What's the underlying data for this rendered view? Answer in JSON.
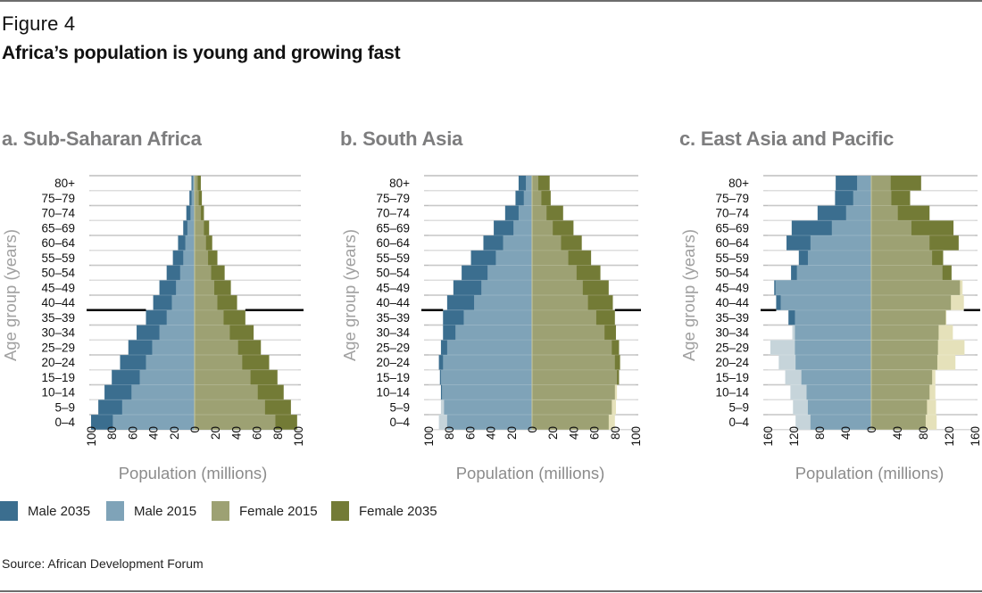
{
  "figure": {
    "label": "Figure 4",
    "title": "Africa’s population is young and growing fast",
    "source": "Source: African Development Forum"
  },
  "colors": {
    "male_2035": "#3b6e8f",
    "male_2015": "#7fa3b8",
    "female_2015": "#9da173",
    "female_2035": "#737b36",
    "male_2015_excess": "#c6d4da",
    "female_2015_excess": "#e5e1ba",
    "gridline": "#bdbdbd",
    "title_gray": "#7d7d7e",
    "axis_label_gray": "#8c8c8c",
    "reference_line": "#000000"
  },
  "legend": [
    {
      "key": "male_2035",
      "label": "Male 2035"
    },
    {
      "key": "male_2015",
      "label": "Male 2015"
    },
    {
      "key": "female_2015",
      "label": "Female 2015"
    },
    {
      "key": "female_2035",
      "label": "Female 2035"
    }
  ],
  "chart_data": [
    {
      "type": "bar",
      "subtype": "population-pyramid",
      "title": "a. Sub-Saharan Africa",
      "xlabel": "Population (millions)",
      "ylabel": "Age group (years)",
      "categories": [
        "0–4",
        "5–9",
        "10–14",
        "15–19",
        "20–24",
        "25–29",
        "30–34",
        "35–39",
        "40–44",
        "45–49",
        "50–54",
        "55–59",
        "60–64",
        "65–69",
        "70–74",
        "75–79",
        "80+"
      ],
      "xlim": [
        -100,
        100
      ],
      "xticks": [
        100,
        80,
        60,
        40,
        20,
        0,
        20,
        40,
        60,
        80,
        100
      ],
      "reference_line_between": [
        "35–39",
        "40–44"
      ],
      "grid": true,
      "series": [
        {
          "name": "Male 2035",
          "values": [
            100,
            93,
            87,
            80,
            72,
            64,
            56,
            47,
            40,
            34,
            27,
            21,
            16,
            11,
            8,
            5,
            3
          ]
        },
        {
          "name": "Male 2015",
          "values": [
            79,
            70,
            61,
            53,
            47,
            41,
            34,
            27,
            22,
            18,
            14,
            11,
            9,
            7,
            4,
            3,
            2
          ]
        },
        {
          "name": "Female 2015",
          "values": [
            78,
            68,
            61,
            54,
            46,
            42,
            34,
            28,
            22,
            19,
            16,
            13,
            11,
            9,
            6,
            4,
            3
          ]
        },
        {
          "name": "Female 2035",
          "values": [
            99,
            93,
            86,
            80,
            72,
            64,
            57,
            49,
            41,
            35,
            29,
            22,
            17,
            14,
            9,
            7,
            6
          ]
        }
      ]
    },
    {
      "type": "bar",
      "subtype": "population-pyramid",
      "title": "b. South Asia",
      "xlabel": "Population (millions)",
      "ylabel": "Age group (years)",
      "categories": [
        "0–4",
        "5–9",
        "10–14",
        "15–19",
        "20–24",
        "25–29",
        "30–34",
        "35–39",
        "40–44",
        "45–49",
        "50–54",
        "55–59",
        "60–64",
        "65–69",
        "70–74",
        "75–79",
        "80+"
      ],
      "xlim": [
        -100,
        100
      ],
      "xticks": [
        100,
        80,
        60,
        40,
        20,
        0,
        20,
        40,
        60,
        80,
        100
      ],
      "reference_line_between": [
        "35–39",
        "40–44"
      ],
      "grid": true,
      "series": [
        {
          "name": "Male 2035",
          "values": [
            82,
            85,
            88,
            89,
            90,
            88,
            86,
            86,
            82,
            76,
            68,
            59,
            47,
            37,
            26,
            16,
            13
          ]
        },
        {
          "name": "Male 2015",
          "values": [
            90,
            88,
            87,
            88,
            86,
            82,
            74,
            66,
            56,
            49,
            43,
            35,
            28,
            18,
            13,
            8,
            6
          ]
        },
        {
          "name": "Female 2015",
          "values": [
            80,
            81,
            82,
            82,
            80,
            77,
            70,
            62,
            54,
            49,
            43,
            35,
            28,
            20,
            14,
            9,
            6
          ]
        },
        {
          "name": "Female 2035",
          "values": [
            74,
            77,
            80,
            84,
            85,
            84,
            81,
            80,
            78,
            74,
            66,
            57,
            48,
            40,
            30,
            18,
            17
          ]
        }
      ]
    },
    {
      "type": "bar",
      "subtype": "population-pyramid",
      "title": "c. East Asia and Pacific",
      "xlabel": "Population (millions)",
      "ylabel": "Age group (years)",
      "categories": [
        "0–4",
        "5–9",
        "10–14",
        "15–19",
        "20–24",
        "25–29",
        "30–34",
        "35–39",
        "40–44",
        "45–49",
        "50–54",
        "55–59",
        "60–64",
        "65–69",
        "70–74",
        "75–79",
        "80+"
      ],
      "xlim": [
        -160,
        160
      ],
      "xticks": [
        160,
        120,
        80,
        40,
        0,
        40,
        80,
        120,
        160
      ],
      "reference_line_between": [
        "35–39",
        "40–44"
      ],
      "grid": true,
      "series": [
        {
          "name": "Male 2035",
          "values": [
            94,
            98,
            100,
            108,
            117,
            118,
            118,
            128,
            147,
            150,
            124,
            112,
            131,
            123,
            83,
            56,
            55
          ]
        },
        {
          "name": "Male 2015",
          "values": [
            117,
            121,
            125,
            133,
            143,
            156,
            122,
            118,
            140,
            148,
            115,
            98,
            94,
            61,
            39,
            28,
            22
          ]
        },
        {
          "name": "Female 2015",
          "values": [
            101,
            100,
            99,
            99,
            130,
            144,
            126,
            116,
            143,
            141,
            110,
            94,
            90,
            62,
            41,
            31,
            30
          ]
        },
        {
          "name": "Female 2035",
          "values": [
            84,
            86,
            90,
            94,
            102,
            103,
            104,
            115,
            123,
            137,
            124,
            111,
            135,
            127,
            90,
            60,
            77
          ]
        }
      ]
    }
  ]
}
